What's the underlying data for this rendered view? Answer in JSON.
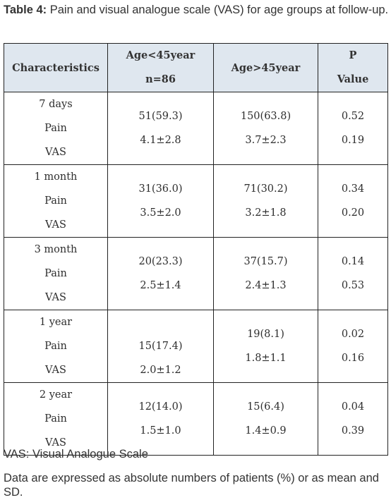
{
  "caption": {
    "label": "Table 4:",
    "text": "Pain and visual analogue scale (VAS) for age groups at follow-up."
  },
  "table": {
    "headers": {
      "characteristics": "Characteristics",
      "group1_line1": "Age<45year",
      "group1_line2": "n=86",
      "group2": "Age>45year",
      "p_line1": "P",
      "p_line2": "Value"
    },
    "rows": [
      {
        "period": "7 days",
        "pain_label": "Pain",
        "vas_label": "VAS",
        "group1_pain": "51(59.3)",
        "group1_vas": "4.1±2.8",
        "group2_pain": "150(63.8)",
        "group2_vas": "3.7±2.3",
        "p_pain": "0.52",
        "p_vas": "0.19"
      },
      {
        "period": "1 month",
        "pain_label": "Pain",
        "vas_label": "VAS",
        "group1_pain": "31(36.0)",
        "group1_vas": "3.5±2.0",
        "group2_pain": "71(30.2)",
        "group2_vas": "3.2±1.8",
        "p_pain": "0.34",
        "p_vas": "0.20"
      },
      {
        "period": "3 month",
        "pain_label": "Pain",
        "vas_label": "VAS",
        "group1_pain": "20(23.3)",
        "group1_vas": "2.5±1.4",
        "group2_pain": "37(15.7)",
        "group2_vas": "2.4±1.3",
        "p_pain": "0.14",
        "p_vas": "0.53"
      },
      {
        "period": "1 year",
        "pain_label": "Pain",
        "vas_label": "VAS",
        "group1_pain": "15(17.4)",
        "group1_vas": "2.0±1.2",
        "group2_pain": "19(8.1)",
        "group2_vas": "1.8±1.1",
        "p_pain": "0.02",
        "p_vas": "0.16"
      },
      {
        "period": "2 year",
        "pain_label": "Pain",
        "vas_label": "VAS",
        "group1_pain": "12(14.0)",
        "group1_vas": "1.5±1.0",
        "group2_pain": "15(6.4)",
        "group2_vas": "1.4±0.9",
        "p_pain": "0.04",
        "p_vas": "0.39"
      }
    ]
  },
  "footnotes": {
    "abbreviation": "VAS: Visual Analogue Scale",
    "note": "Data are expressed as absolute numbers of patients (%) or as mean and SD."
  },
  "colors": {
    "header_background": "#dfe7ef",
    "border": "#222222",
    "text": "#2e2e2e"
  }
}
